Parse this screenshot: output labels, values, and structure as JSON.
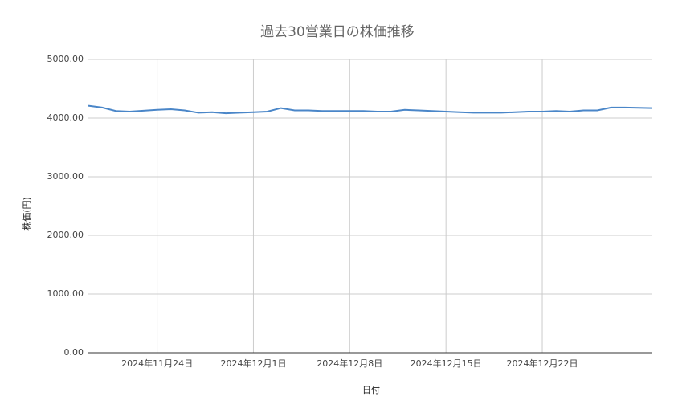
{
  "chart_data": {
    "type": "line",
    "title": "過去30営業日の株価推移",
    "x_label": "日付",
    "y_label": "株価(円)",
    "x": [
      "2024-11-19",
      "2024-11-20",
      "2024-11-21",
      "2024-11-22",
      "2024-11-24",
      "2024-11-25",
      "2024-11-26",
      "2024-11-27",
      "2024-11-28",
      "2024-11-29",
      "2024-11-30",
      "2024-12-01",
      "2024-12-02",
      "2024-12-03",
      "2024-12-04",
      "2024-12-05",
      "2024-12-06",
      "2024-12-08",
      "2024-12-09",
      "2024-12-10",
      "2024-12-11",
      "2024-12-12",
      "2024-12-13",
      "2024-12-14",
      "2024-12-15",
      "2024-12-16",
      "2024-12-17",
      "2024-12-18",
      "2024-12-19",
      "2024-12-20",
      "2024-12-21",
      "2024-12-22",
      "2024-12-23",
      "2024-12-24",
      "2024-12-25",
      "2024-12-26",
      "2024-12-27",
      "2024-12-28",
      "2024-12-30"
    ],
    "series": [
      {
        "name": "株価",
        "color": "#4a86c8",
        "values": [
          4210,
          4180,
          4120,
          4110,
          4140,
          4150,
          4130,
          4090,
          4100,
          4080,
          4090,
          4100,
          4110,
          4170,
          4130,
          4130,
          4120,
          4120,
          4120,
          4110,
          4110,
          4140,
          4130,
          4120,
          4110,
          4100,
          4090,
          4090,
          4090,
          4100,
          4110,
          4110,
          4120,
          4110,
          4130,
          4130,
          4180,
          4180,
          4170
        ]
      }
    ],
    "xlim": [
      "2024-11-19",
      "2024-12-30"
    ],
    "xticks": [
      {
        "value": "2024-11-24",
        "label": "2024年11月24日"
      },
      {
        "value": "2024-12-01",
        "label": "2024年12月1日"
      },
      {
        "value": "2024-12-08",
        "label": "2024年12月8日"
      },
      {
        "value": "2024-12-15",
        "label": "2024年12月15日"
      },
      {
        "value": "2024-12-22",
        "label": "2024年12月22日"
      }
    ],
    "ylim": [
      0,
      5000
    ],
    "yticks": [
      {
        "value": 0,
        "label": "0.00"
      },
      {
        "value": 1000,
        "label": "1000.00"
      },
      {
        "value": 2000,
        "label": "2000.00"
      },
      {
        "value": 3000,
        "label": "3000.00"
      },
      {
        "value": 4000,
        "label": "4000.00"
      },
      {
        "value": 5000,
        "label": "5000.00"
      }
    ],
    "grid": true
  }
}
